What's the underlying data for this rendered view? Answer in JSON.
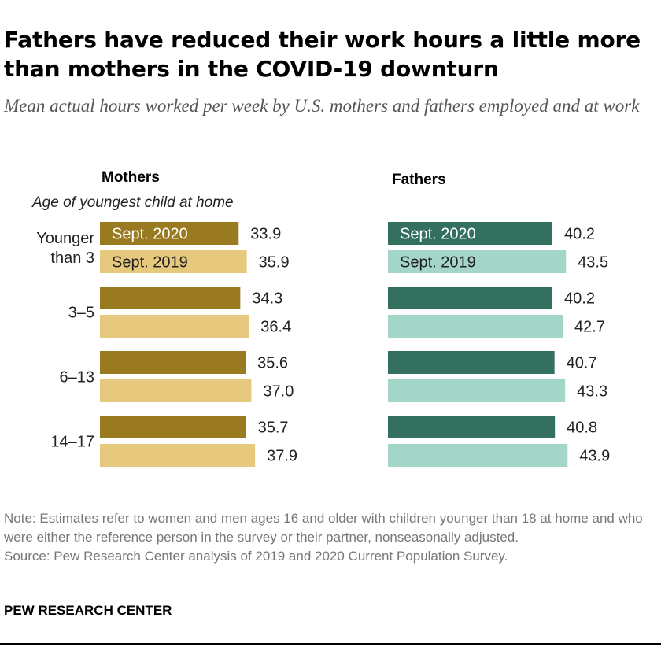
{
  "title": "Fathers have reduced their work hours a little more than mothers in the COVID-19 downturn",
  "subtitle": "Mean actual hours worked per week by U.S. mothers and fathers employed and at work",
  "note": "Note: Estimates refer to women and men ages 16 and older with children younger than 18 at home and who were either the reference person in the survey or their partner, nonseasonally adjusted.",
  "source": "Source: Pew Research Center analysis of 2019 and 2020 Current Population Survey.",
  "brand": "PEW RESEARCH CENTER",
  "colors": {
    "mothers_2020": "#9a7a20",
    "mothers_2019": "#e6c97c",
    "fathers_2020": "#33705f",
    "fathers_2019": "#a3d6c9"
  },
  "chart_data": {
    "type": "bar",
    "orientation": "horizontal",
    "row_header": "Age of youngest child at home",
    "categories": [
      "Younger\nthan 3",
      "3–5",
      "6–13",
      "14–17"
    ],
    "panels": [
      {
        "name": "Mothers",
        "series": [
          {
            "name": "Sept. 2020",
            "values": [
              33.9,
              34.3,
              35.6,
              35.7
            ],
            "labels": [
              "33.9",
              "34.3",
              "35.6",
              "35.7"
            ]
          },
          {
            "name": "Sept. 2019",
            "values": [
              35.9,
              36.4,
              37.0,
              37.9
            ],
            "labels": [
              "35.9",
              "36.4",
              "37.0",
              "37.9"
            ]
          }
        ]
      },
      {
        "name": "Fathers",
        "series": [
          {
            "name": "Sept. 2020",
            "values": [
              40.2,
              40.2,
              40.7,
              40.8
            ],
            "labels": [
              "40.2",
              "40.2",
              "40.7",
              "40.8"
            ]
          },
          {
            "name": "Sept. 2019",
            "values": [
              43.5,
              42.7,
              43.3,
              43.9
            ],
            "labels": [
              "43.5",
              "42.7",
              "43.3",
              "43.9"
            ]
          }
        ]
      }
    ],
    "xlim": [
      0,
      45
    ]
  }
}
